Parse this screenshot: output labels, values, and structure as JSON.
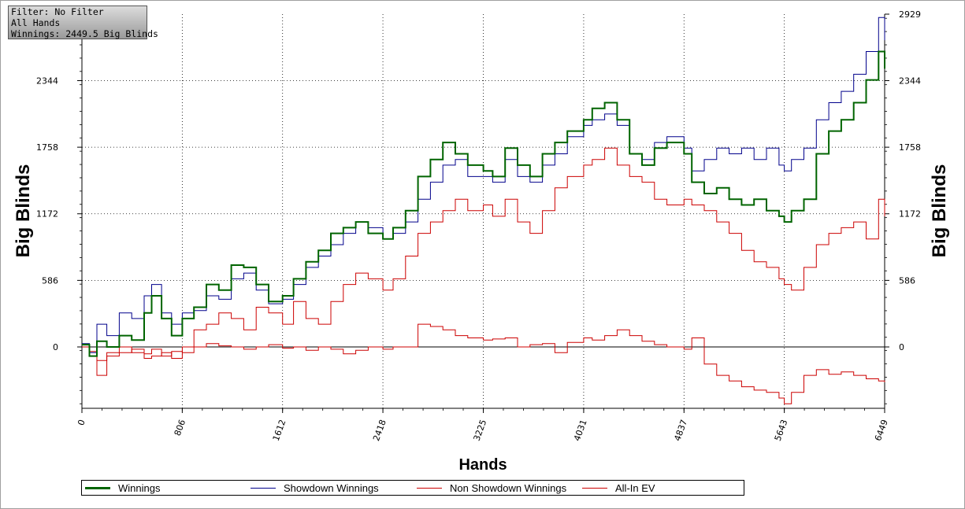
{
  "filter_box": {
    "line1": "Filter: No Filter",
    "line2": "All Hands",
    "line3": "Winnings: 2449.5 Big Blinds"
  },
  "chart_data": {
    "type": "line",
    "xlabel": "Hands",
    "ylabel": "Big Blinds",
    "xlim": [
      0,
      6449
    ],
    "ylim": [
      -540,
      2929
    ],
    "x_ticks": [
      "0",
      "806",
      "1612",
      "2418",
      "3225",
      "4031",
      "4837",
      "5643",
      "6449"
    ],
    "y_ticks": [
      "0",
      "586",
      "1172",
      "1758",
      "2344",
      "2929"
    ],
    "y_tick_values": [
      0,
      586,
      1172,
      1758,
      2344,
      2929
    ],
    "grid": true,
    "legend_position": "bottom",
    "series": [
      {
        "name": "Winnings",
        "color": "#006400",
        "x": [
          0,
          60,
          120,
          200,
          300,
          400,
          500,
          560,
          640,
          720,
          806,
          900,
          1000,
          1100,
          1200,
          1300,
          1400,
          1500,
          1612,
          1700,
          1800,
          1900,
          2000,
          2100,
          2200,
          2300,
          2418,
          2500,
          2600,
          2700,
          2800,
          2900,
          3000,
          3100,
          3225,
          3300,
          3400,
          3500,
          3600,
          3700,
          3800,
          3900,
          4031,
          4100,
          4200,
          4300,
          4400,
          4500,
          4600,
          4700,
          4837,
          4900,
          5000,
          5100,
          5200,
          5300,
          5400,
          5500,
          5600,
          5643,
          5700,
          5800,
          5900,
          6000,
          6100,
          6200,
          6300,
          6400,
          6449
        ],
        "values": [
          20,
          -80,
          50,
          0,
          100,
          60,
          300,
          450,
          250,
          100,
          250,
          350,
          550,
          500,
          720,
          700,
          550,
          400,
          450,
          600,
          750,
          850,
          1000,
          1050,
          1100,
          1000,
          950,
          1050,
          1200,
          1500,
          1650,
          1800,
          1700,
          1600,
          1550,
          1500,
          1750,
          1600,
          1500,
          1700,
          1800,
          1900,
          2000,
          2100,
          2150,
          2000,
          1700,
          1600,
          1750,
          1800,
          1700,
          1450,
          1350,
          1400,
          1300,
          1250,
          1300,
          1200,
          1150,
          1100,
          1200,
          1300,
          1700,
          1900,
          2000,
          2150,
          2350,
          2600,
          2450
        ]
      },
      {
        "name": "Showdown Winnings",
        "color": "#00008b",
        "x": [
          0,
          60,
          120,
          200,
          300,
          400,
          500,
          560,
          640,
          720,
          806,
          900,
          1000,
          1100,
          1200,
          1300,
          1400,
          1500,
          1612,
          1700,
          1800,
          1900,
          2000,
          2100,
          2200,
          2300,
          2418,
          2500,
          2600,
          2700,
          2800,
          2900,
          3000,
          3100,
          3225,
          3300,
          3400,
          3500,
          3600,
          3700,
          3800,
          3900,
          4031,
          4100,
          4200,
          4300,
          4400,
          4500,
          4600,
          4700,
          4837,
          4900,
          5000,
          5100,
          5200,
          5300,
          5400,
          5500,
          5600,
          5643,
          5700,
          5800,
          5900,
          6000,
          6100,
          6200,
          6300,
          6400,
          6449
        ],
        "values": [
          30,
          -50,
          200,
          100,
          300,
          250,
          450,
          550,
          300,
          200,
          300,
          320,
          450,
          420,
          600,
          650,
          500,
          380,
          420,
          550,
          700,
          800,
          900,
          1000,
          1100,
          1050,
          950,
          1000,
          1100,
          1300,
          1450,
          1600,
          1650,
          1500,
          1500,
          1450,
          1650,
          1500,
          1450,
          1600,
          1700,
          1850,
          1950,
          2000,
          2050,
          1950,
          1700,
          1650,
          1800,
          1850,
          1750,
          1550,
          1650,
          1750,
          1700,
          1750,
          1650,
          1750,
          1600,
          1550,
          1650,
          1750,
          2000,
          2150,
          2250,
          2400,
          2600,
          2900,
          2700
        ]
      },
      {
        "name": "Non Showdown Winnings",
        "color": "#cc0000",
        "x": [
          0,
          60,
          120,
          200,
          300,
          400,
          500,
          560,
          640,
          720,
          806,
          900,
          1000,
          1100,
          1200,
          1300,
          1400,
          1500,
          1612,
          1700,
          1800,
          1900,
          2000,
          2100,
          2200,
          2300,
          2418,
          2500,
          2600,
          2700,
          2800,
          2900,
          3000,
          3100,
          3225,
          3300,
          3400,
          3500,
          3600,
          3700,
          3800,
          3900,
          4031,
          4100,
          4200,
          4300,
          4400,
          4500,
          4600,
          4700,
          4837,
          4900,
          5000,
          5100,
          5200,
          5300,
          5400,
          5500,
          5600,
          5643,
          5700,
          5800,
          5900,
          6000,
          6100,
          6200,
          6300,
          6400,
          6449
        ],
        "values": [
          0,
          -40,
          -120,
          -80,
          -50,
          -20,
          -60,
          -20,
          -80,
          -40,
          -50,
          0,
          30,
          10,
          0,
          -20,
          0,
          20,
          -10,
          0,
          -30,
          0,
          -20,
          -60,
          -30,
          0,
          -20,
          0,
          0,
          200,
          180,
          150,
          100,
          80,
          60,
          70,
          80,
          0,
          20,
          30,
          -50,
          40,
          80,
          60,
          100,
          150,
          100,
          50,
          20,
          0,
          -20,
          80,
          -150,
          -250,
          -300,
          -350,
          -380,
          -400,
          -450,
          -500,
          -400,
          -250,
          -200,
          -240,
          -220,
          -250,
          -280,
          -300,
          -310
        ]
      },
      {
        "name": "All-In EV",
        "color": "#cc0000",
        "x": [
          0,
          60,
          120,
          200,
          300,
          400,
          500,
          560,
          640,
          720,
          806,
          900,
          1000,
          1100,
          1200,
          1300,
          1400,
          1500,
          1612,
          1700,
          1800,
          1900,
          2000,
          2100,
          2200,
          2300,
          2418,
          2500,
          2600,
          2700,
          2800,
          2900,
          3000,
          3100,
          3225,
          3300,
          3400,
          3500,
          3600,
          3700,
          3800,
          3900,
          4031,
          4100,
          4200,
          4300,
          4400,
          4500,
          4600,
          4700,
          4837,
          4900,
          5000,
          5100,
          5200,
          5300,
          5400,
          5500,
          5600,
          5643,
          5700,
          5800,
          5900,
          6000,
          6100,
          6200,
          6300,
          6400,
          6449
        ],
        "values": [
          0,
          -80,
          -250,
          -50,
          0,
          -50,
          -100,
          -80,
          -50,
          -100,
          0,
          150,
          200,
          300,
          250,
          150,
          350,
          300,
          200,
          400,
          250,
          200,
          400,
          550,
          650,
          600,
          500,
          600,
          800,
          1000,
          1100,
          1200,
          1300,
          1200,
          1250,
          1150,
          1300,
          1100,
          1000,
          1200,
          1400,
          1500,
          1600,
          1650,
          1750,
          1600,
          1500,
          1450,
          1300,
          1250,
          1300,
          1250,
          1200,
          1100,
          1000,
          850,
          750,
          700,
          600,
          550,
          500,
          700,
          900,
          1000,
          1050,
          1100,
          950,
          1300,
          1150
        ]
      }
    ]
  }
}
